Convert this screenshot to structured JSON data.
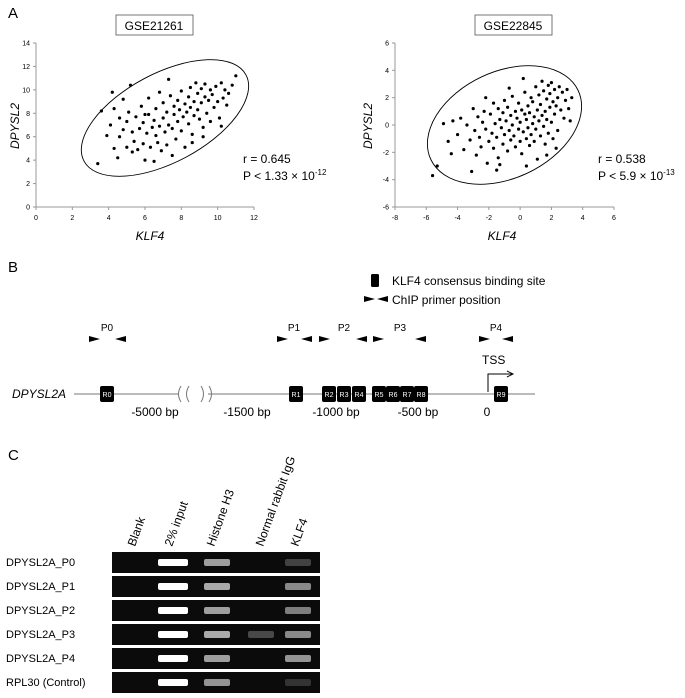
{
  "panels": {
    "A": {
      "letter": "A",
      "chart_data": [
        {
          "type": "scatter",
          "title": "GSE21261",
          "xlabel": "KLF4",
          "ylabel": "DPYSL2",
          "xlim": [
            0,
            12
          ],
          "ylim": [
            0,
            14
          ],
          "xticks": [
            0,
            2,
            4,
            6,
            8,
            10,
            12
          ],
          "yticks": [
            0,
            2,
            4,
            6,
            8,
            10,
            12,
            14
          ],
          "stat_r": "r = 0.645",
          "stat_p": "P < 1.33 × 10",
          "stat_p_exp": "-12",
          "ellipse": {
            "cx": 7.1,
            "cy": 7.6,
            "rx": 5.05,
            "ry": 3.8,
            "angle_deg": -28
          },
          "grid": false,
          "points": [
            [
              3.4,
              3.7
            ],
            [
              3.6,
              8.2
            ],
            [
              3.9,
              6.1
            ],
            [
              4.1,
              7.0
            ],
            [
              4.3,
              5.0
            ],
            [
              4.3,
              8.4
            ],
            [
              4.5,
              4.2
            ],
            [
              4.6,
              6.0
            ],
            [
              4.6,
              7.6
            ],
            [
              4.8,
              6.6
            ],
            [
              4.8,
              9.2
            ],
            [
              5.0,
              5.1
            ],
            [
              5.0,
              7.3
            ],
            [
              5.1,
              8.1
            ],
            [
              5.3,
              4.7
            ],
            [
              5.3,
              6.4
            ],
            [
              5.4,
              5.6
            ],
            [
              5.5,
              7.7
            ],
            [
              5.6,
              4.9
            ],
            [
              5.7,
              6.7
            ],
            [
              5.8,
              8.6
            ],
            [
              5.9,
              5.4
            ],
            [
              5.9,
              7.2
            ],
            [
              6.0,
              4.0
            ],
            [
              6.1,
              6.3
            ],
            [
              6.2,
              7.9
            ],
            [
              6.2,
              9.3
            ],
            [
              6.3,
              5.1
            ],
            [
              6.4,
              6.8
            ],
            [
              6.5,
              3.9
            ],
            [
              6.5,
              7.4
            ],
            [
              6.6,
              8.4
            ],
            [
              6.6,
              6.1
            ],
            [
              6.7,
              5.5
            ],
            [
              6.8,
              9.8
            ],
            [
              6.8,
              6.9
            ],
            [
              6.9,
              4.8
            ],
            [
              7.0,
              7.6
            ],
            [
              7.0,
              8.9
            ],
            [
              7.1,
              6.4
            ],
            [
              7.2,
              5.3
            ],
            [
              7.2,
              8.1
            ],
            [
              7.3,
              7.0
            ],
            [
              7.4,
              9.5
            ],
            [
              7.5,
              4.4
            ],
            [
              7.5,
              6.7
            ],
            [
              7.6,
              8.6
            ],
            [
              7.6,
              7.9
            ],
            [
              7.7,
              5.8
            ],
            [
              7.8,
              9.1
            ],
            [
              7.8,
              7.3
            ],
            [
              7.9,
              8.3
            ],
            [
              8.0,
              6.5
            ],
            [
              8.0,
              9.9
            ],
            [
              8.1,
              7.7
            ],
            [
              8.2,
              8.8
            ],
            [
              8.2,
              5.1
            ],
            [
              8.3,
              8.1
            ],
            [
              8.4,
              9.4
            ],
            [
              8.4,
              7.1
            ],
            [
              8.5,
              10.2
            ],
            [
              8.5,
              8.5
            ],
            [
              8.6,
              6.2
            ],
            [
              8.7,
              9.0
            ],
            [
              8.7,
              7.8
            ],
            [
              8.8,
              10.6
            ],
            [
              8.9,
              8.3
            ],
            [
              8.9,
              9.7
            ],
            [
              9.0,
              7.5
            ],
            [
              9.1,
              10.1
            ],
            [
              9.1,
              8.9
            ],
            [
              9.2,
              6.8
            ],
            [
              9.3,
              9.4
            ],
            [
              9.3,
              10.5
            ],
            [
              9.4,
              8.0
            ],
            [
              9.5,
              9.1
            ],
            [
              9.6,
              10.0
            ],
            [
              9.6,
              7.3
            ],
            [
              9.7,
              9.6
            ],
            [
              9.8,
              8.5
            ],
            [
              9.9,
              10.3
            ],
            [
              10.0,
              9.0
            ],
            [
              10.1,
              7.6
            ],
            [
              10.2,
              10.6
            ],
            [
              10.3,
              9.3
            ],
            [
              10.4,
              10.0
            ],
            [
              10.5,
              8.7
            ],
            [
              10.6,
              9.7
            ],
            [
              10.8,
              10.4
            ],
            [
              11.0,
              11.2
            ],
            [
              4.2,
              9.8
            ],
            [
              5.2,
              10.4
            ],
            [
              6.0,
              7.9
            ],
            [
              7.3,
              10.9
            ],
            [
              8.6,
              5.5
            ],
            [
              9.2,
              6.0
            ],
            [
              10.2,
              6.9
            ]
          ]
        },
        {
          "type": "scatter",
          "title": "GSE22845",
          "xlabel": "KLF4",
          "ylabel": "DPYSL2",
          "xlim": [
            -8,
            6
          ],
          "ylim": [
            -6,
            6
          ],
          "xticks": [
            -8,
            -6,
            -4,
            -2,
            0,
            2,
            4,
            6
          ],
          "yticks": [
            -6,
            -4,
            -2,
            0,
            2,
            4,
            6
          ],
          "stat_r": "r = 0.538",
          "stat_p": "P < 5.9 × 10",
          "stat_p_exp": "-13",
          "ellipse": {
            "cx": -1.0,
            "cy": 0.0,
            "rx": 5.2,
            "ry": 3.9,
            "angle_deg": -25
          },
          "grid": false,
          "points": [
            [
              -5.6,
              -3.7
            ],
            [
              -5.3,
              -3.0
            ],
            [
              -4.9,
              0.1
            ],
            [
              -4.6,
              -1.2
            ],
            [
              -4.3,
              0.3
            ],
            [
              -4.0,
              -0.7
            ],
            [
              -3.8,
              0.5
            ],
            [
              -3.6,
              -1.8
            ],
            [
              -3.4,
              0.0
            ],
            [
              -3.2,
              -1.1
            ],
            [
              -3.0,
              1.2
            ],
            [
              -2.9,
              -0.4
            ],
            [
              -2.8,
              -2.2
            ],
            [
              -2.7,
              0.6
            ],
            [
              -2.6,
              -0.9
            ],
            [
              -2.5,
              -1.6
            ],
            [
              -2.4,
              0.2
            ],
            [
              -2.3,
              1.0
            ],
            [
              -2.2,
              -0.3
            ],
            [
              -2.1,
              -2.8
            ],
            [
              -2.0,
              -1.2
            ],
            [
              -1.9,
              0.8
            ],
            [
              -1.8,
              -0.6
            ],
            [
              -1.7,
              1.6
            ],
            [
              -1.7,
              -1.7
            ],
            [
              -1.6,
              0.1
            ],
            [
              -1.5,
              -0.9
            ],
            [
              -1.4,
              1.2
            ],
            [
              -1.4,
              -2.4
            ],
            [
              -1.3,
              0.4
            ],
            [
              -1.2,
              -0.2
            ],
            [
              -1.1,
              -1.4
            ],
            [
              -1.1,
              0.9
            ],
            [
              -1.0,
              1.8
            ],
            [
              -1.0,
              -0.7
            ],
            [
              -0.9,
              0.3
            ],
            [
              -0.8,
              -1.9
            ],
            [
              -0.8,
              1.3
            ],
            [
              -0.7,
              -0.4
            ],
            [
              -0.6,
              0.7
            ],
            [
              -0.6,
              -1.1
            ],
            [
              -0.5,
              2.1
            ],
            [
              -0.5,
              0.0
            ],
            [
              -0.4,
              -0.8
            ],
            [
              -0.3,
              1.0
            ],
            [
              -0.3,
              -1.6
            ],
            [
              -0.2,
              0.5
            ],
            [
              -0.1,
              -0.3
            ],
            [
              -0.1,
              1.6
            ],
            [
              0.0,
              -1.2
            ],
            [
              0.0,
              0.2
            ],
            [
              0.1,
              -2.1
            ],
            [
              0.1,
              1.1
            ],
            [
              0.2,
              -0.5
            ],
            [
              0.3,
              0.8
            ],
            [
              0.3,
              2.4
            ],
            [
              0.4,
              -1.0
            ],
            [
              0.4,
              0.4
            ],
            [
              0.5,
              1.4
            ],
            [
              0.5,
              -0.2
            ],
            [
              0.6,
              -1.5
            ],
            [
              0.6,
              0.9
            ],
            [
              0.7,
              2.0
            ],
            [
              0.7,
              -0.7
            ],
            [
              0.8,
              0.1
            ],
            [
              0.8,
              1.7
            ],
            [
              0.9,
              -1.2
            ],
            [
              0.9,
              0.6
            ],
            [
              1.0,
              2.8
            ],
            [
              1.0,
              -0.3
            ],
            [
              1.1,
              1.1
            ],
            [
              1.1,
              -2.5
            ],
            [
              1.2,
              0.3
            ],
            [
              1.2,
              2.2
            ],
            [
              1.3,
              -0.8
            ],
            [
              1.3,
              1.5
            ],
            [
              1.4,
              0.7
            ],
            [
              1.4,
              3.2
            ],
            [
              1.5,
              -0.1
            ],
            [
              1.5,
              2.5
            ],
            [
              1.6,
              1.0
            ],
            [
              1.6,
              -1.4
            ],
            [
              1.7,
              1.9
            ],
            [
              1.7,
              0.4
            ],
            [
              1.8,
              2.9
            ],
            [
              1.8,
              -0.6
            ],
            [
              1.9,
              1.3
            ],
            [
              1.9,
              2.3
            ],
            [
              2.0,
              0.2
            ],
            [
              2.0,
              3.1
            ],
            [
              2.1,
              1.7
            ],
            [
              2.1,
              -1.0
            ],
            [
              2.2,
              2.6
            ],
            [
              2.2,
              0.8
            ],
            [
              2.3,
              1.4
            ],
            [
              2.4,
              2.0
            ],
            [
              2.4,
              -0.4
            ],
            [
              2.5,
              2.8
            ],
            [
              2.6,
              1.1
            ],
            [
              2.7,
              2.4
            ],
            [
              2.8,
              0.5
            ],
            [
              2.9,
              1.8
            ],
            [
              3.0,
              2.6
            ],
            [
              3.1,
              1.2
            ],
            [
              3.2,
              0.3
            ],
            [
              3.3,
              2.0
            ],
            [
              -3.1,
              -3.4
            ],
            [
              -1.5,
              -3.3
            ],
            [
              0.4,
              -3.0
            ],
            [
              1.7,
              -2.2
            ],
            [
              2.3,
              -1.7
            ],
            [
              -4.4,
              -2.1
            ],
            [
              -2.2,
              2.0
            ],
            [
              -0.7,
              2.7
            ],
            [
              0.2,
              3.4
            ],
            [
              -1.3,
              -2.9
            ]
          ]
        }
      ]
    },
    "B": {
      "letter": "B",
      "gene_label": "DPYSL2A",
      "legend_binding": "KLF4 consensus binding site",
      "legend_primer": "ChIP primer position",
      "tss_label": "TSS",
      "primer_labels": [
        "P0",
        "P1",
        "P2",
        "P3",
        "P4"
      ],
      "sites": [
        "R0",
        "R1",
        "R2",
        "R3",
        "R4",
        "R5",
        "R6",
        "R7",
        "R8",
        "R9"
      ],
      "positions": [
        "-5000 bp",
        "-1500 bp",
        "-1000 bp",
        "-500 bp",
        "0"
      ]
    },
    "C": {
      "letter": "C",
      "columns": [
        "Blank",
        "2% input",
        "Histone H3",
        "Normal rabbit IgG",
        "KLF4"
      ],
      "rows": [
        {
          "label": "DPYSL2A_P0",
          "bands": [
            0,
            1.0,
            0.55,
            0,
            0.12
          ]
        },
        {
          "label": "DPYSL2A_P1",
          "bands": [
            0,
            1.0,
            0.6,
            0,
            0.45
          ]
        },
        {
          "label": "DPYSL2A_P2",
          "bands": [
            0,
            1.0,
            0.55,
            0,
            0.4
          ]
        },
        {
          "label": "DPYSL2A_P3",
          "bands": [
            0,
            1.0,
            0.6,
            0.15,
            0.45
          ]
        },
        {
          "label": "DPYSL2A_P4",
          "bands": [
            0,
            1.0,
            0.55,
            0,
            0.5
          ]
        },
        {
          "label": "RPL30 (Control)",
          "bands": [
            0,
            1.0,
            0.5,
            0,
            0.05
          ]
        }
      ]
    }
  }
}
